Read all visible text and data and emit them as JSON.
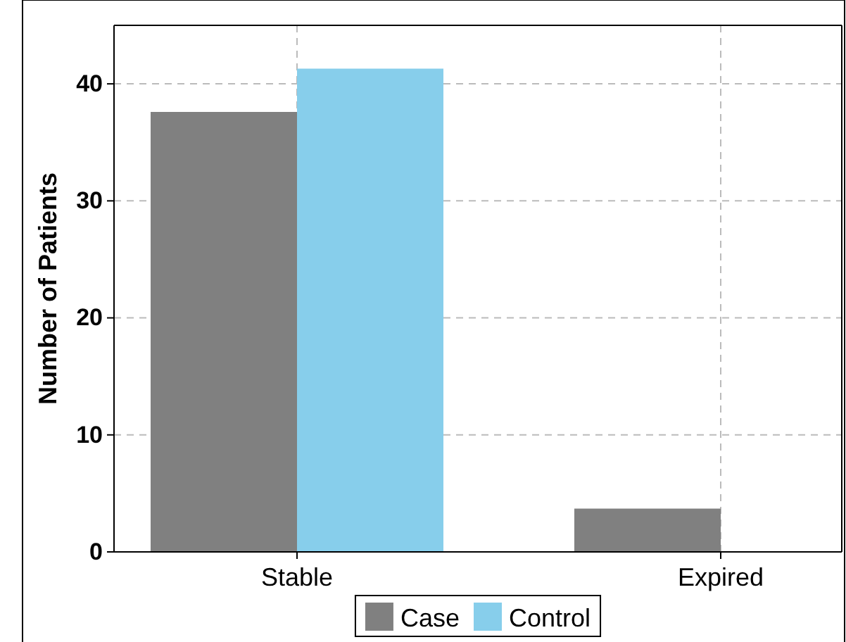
{
  "chart_data": {
    "type": "bar",
    "ylabel": "Number of Patients",
    "categories": [
      "Stable",
      "Expired"
    ],
    "series": [
      {
        "name": "Case",
        "color": "#808080",
        "values": [
          37.6,
          3.7
        ]
      },
      {
        "name": "Control",
        "color": "#87ceeb",
        "values": [
          41.3,
          0
        ]
      }
    ],
    "ylim": [
      0,
      45
    ],
    "yticks": [
      0,
      10,
      20,
      30,
      40
    ],
    "grid": true,
    "legend": "bottom"
  }
}
